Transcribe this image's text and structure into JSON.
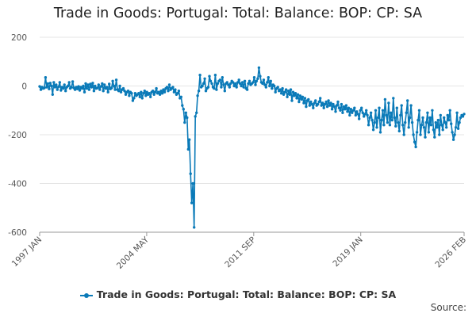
{
  "page": {
    "title": "Trade in Goods: Portugal: Total: Balance: BOP: CP: SA",
    "source_label": "Source:"
  },
  "chart_data": {
    "type": "line",
    "title": "Trade in Goods: Portugal: Total: Balance: BOP: CP: SA",
    "xlabel": "",
    "ylabel": "",
    "ylim": [
      -600,
      200
    ],
    "yticks": [
      200,
      0,
      -200,
      -400,
      -600
    ],
    "ytick_labels": [
      "200",
      "0",
      "-200",
      "-400",
      "-600"
    ],
    "xlim": [
      "1997-01",
      "2026-02"
    ],
    "xticks": [
      "1997-01",
      "2004-05",
      "2011-09",
      "2019-01",
      "2026-02"
    ],
    "xtick_labels": [
      "1997 JAN",
      "2004 MAY",
      "2011 SEP",
      "2019 JAN",
      "2026 FEB"
    ],
    "grid": "horizontal",
    "legend_position": "bottom",
    "series": [
      {
        "name": "Trade in Goods: Portugal: Total: Balance: BOP: CP: SA",
        "color": "#0a7ab8",
        "marker": "circle",
        "frequency": "monthly",
        "start": "1997-01",
        "values": [
          -2,
          -15,
          -5,
          -10,
          -8,
          35,
          -5,
          10,
          -12,
          12,
          0,
          -35,
          15,
          -5,
          5,
          -15,
          -3,
          15,
          -18,
          -5,
          -10,
          5,
          -20,
          -5,
          0,
          15,
          -10,
          -5,
          18,
          -8,
          -15,
          -5,
          -12,
          -2,
          -18,
          -5,
          -10,
          0,
          -25,
          10,
          -10,
          5,
          -15,
          8,
          -5,
          12,
          -20,
          0,
          -10,
          -8,
          5,
          -15,
          -2,
          10,
          -20,
          5,
          -10,
          -5,
          -25,
          8,
          -12,
          -8,
          20,
          0,
          -15,
          25,
          -15,
          -20,
          0,
          -25,
          -15,
          -10,
          -20,
          -35,
          -25,
          -20,
          -40,
          -25,
          -30,
          -60,
          -50,
          -30,
          -40,
          -35,
          -30,
          -45,
          -25,
          -50,
          -30,
          -20,
          -40,
          -25,
          -35,
          -30,
          -45,
          -25,
          -20,
          -35,
          -25,
          -10,
          -30,
          -25,
          -35,
          -20,
          -30,
          -15,
          -25,
          -10,
          -5,
          -20,
          5,
          -15,
          -10,
          -5,
          -25,
          -15,
          -35,
          -30,
          -20,
          -50,
          -45,
          -80,
          -95,
          -150,
          -110,
          -130,
          -260,
          -220,
          -360,
          -480,
          -400,
          -580,
          -125,
          -110,
          -40,
          -20,
          45,
          -5,
          0,
          10,
          30,
          -20,
          -10,
          -5,
          40,
          20,
          10,
          -5,
          -10,
          45,
          -15,
          10,
          20,
          25,
          -5,
          35,
          5,
          -20,
          10,
          15,
          5,
          -5,
          10,
          20,
          15,
          0,
          10,
          -5,
          15,
          25,
          10,
          0,
          15,
          -5,
          20,
          -10,
          -15,
          10,
          20,
          5,
          10,
          15,
          35,
          5,
          20,
          30,
          75,
          40,
          15,
          10,
          25,
          5,
          -5,
          15,
          35,
          0,
          20,
          -10,
          5,
          0,
          -25,
          -10,
          -5,
          -20,
          -15,
          -30,
          -10,
          -35,
          -25,
          -15,
          -45,
          -20,
          -35,
          -15,
          -60,
          -25,
          -40,
          -30,
          -50,
          -35,
          -65,
          -40,
          -55,
          -45,
          -70,
          -50,
          -85,
          -60,
          -55,
          -80,
          -65,
          -75,
          -90,
          -70,
          -60,
          -80,
          -75,
          -65,
          -50,
          -80,
          -70,
          -90,
          -75,
          -65,
          -85,
          -60,
          -80,
          -70,
          -95,
          -75,
          -85,
          -105,
          -80,
          -65,
          -90,
          -100,
          -75,
          -110,
          -85,
          -95,
          -80,
          -105,
          -90,
          -120,
          -95,
          -110,
          -100,
          -90,
          -120,
          -105,
          -115,
          -135,
          -100,
          -90,
          -110,
          -125,
          -115,
          -100,
          -120,
          -160,
          -130,
          -110,
          -140,
          -180,
          -150,
          -100,
          -170,
          -130,
          -90,
          -190,
          -140,
          -100,
          -160,
          -55,
          -120,
          -150,
          -70,
          -160,
          -110,
          -140,
          -50,
          -130,
          -165,
          -90,
          -150,
          -185,
          -120,
          -80,
          -160,
          -200,
          -150,
          -110,
          -60,
          -170,
          -130,
          -80,
          -150,
          -200,
          -230,
          -250,
          -190,
          -140,
          -100,
          -200,
          -160,
          -130,
          -170,
          -210,
          -150,
          -110,
          -190,
          -130,
          -160,
          -100,
          -180,
          -210,
          -150,
          -170,
          -140,
          -200,
          -120,
          -160,
          -180,
          -130,
          -150,
          -170,
          -120,
          -140,
          -100,
          -155,
          -190,
          -220,
          -200,
          -170,
          -110,
          -175,
          -150,
          -130,
          -120,
          -125,
          -115
        ]
      }
    ]
  }
}
